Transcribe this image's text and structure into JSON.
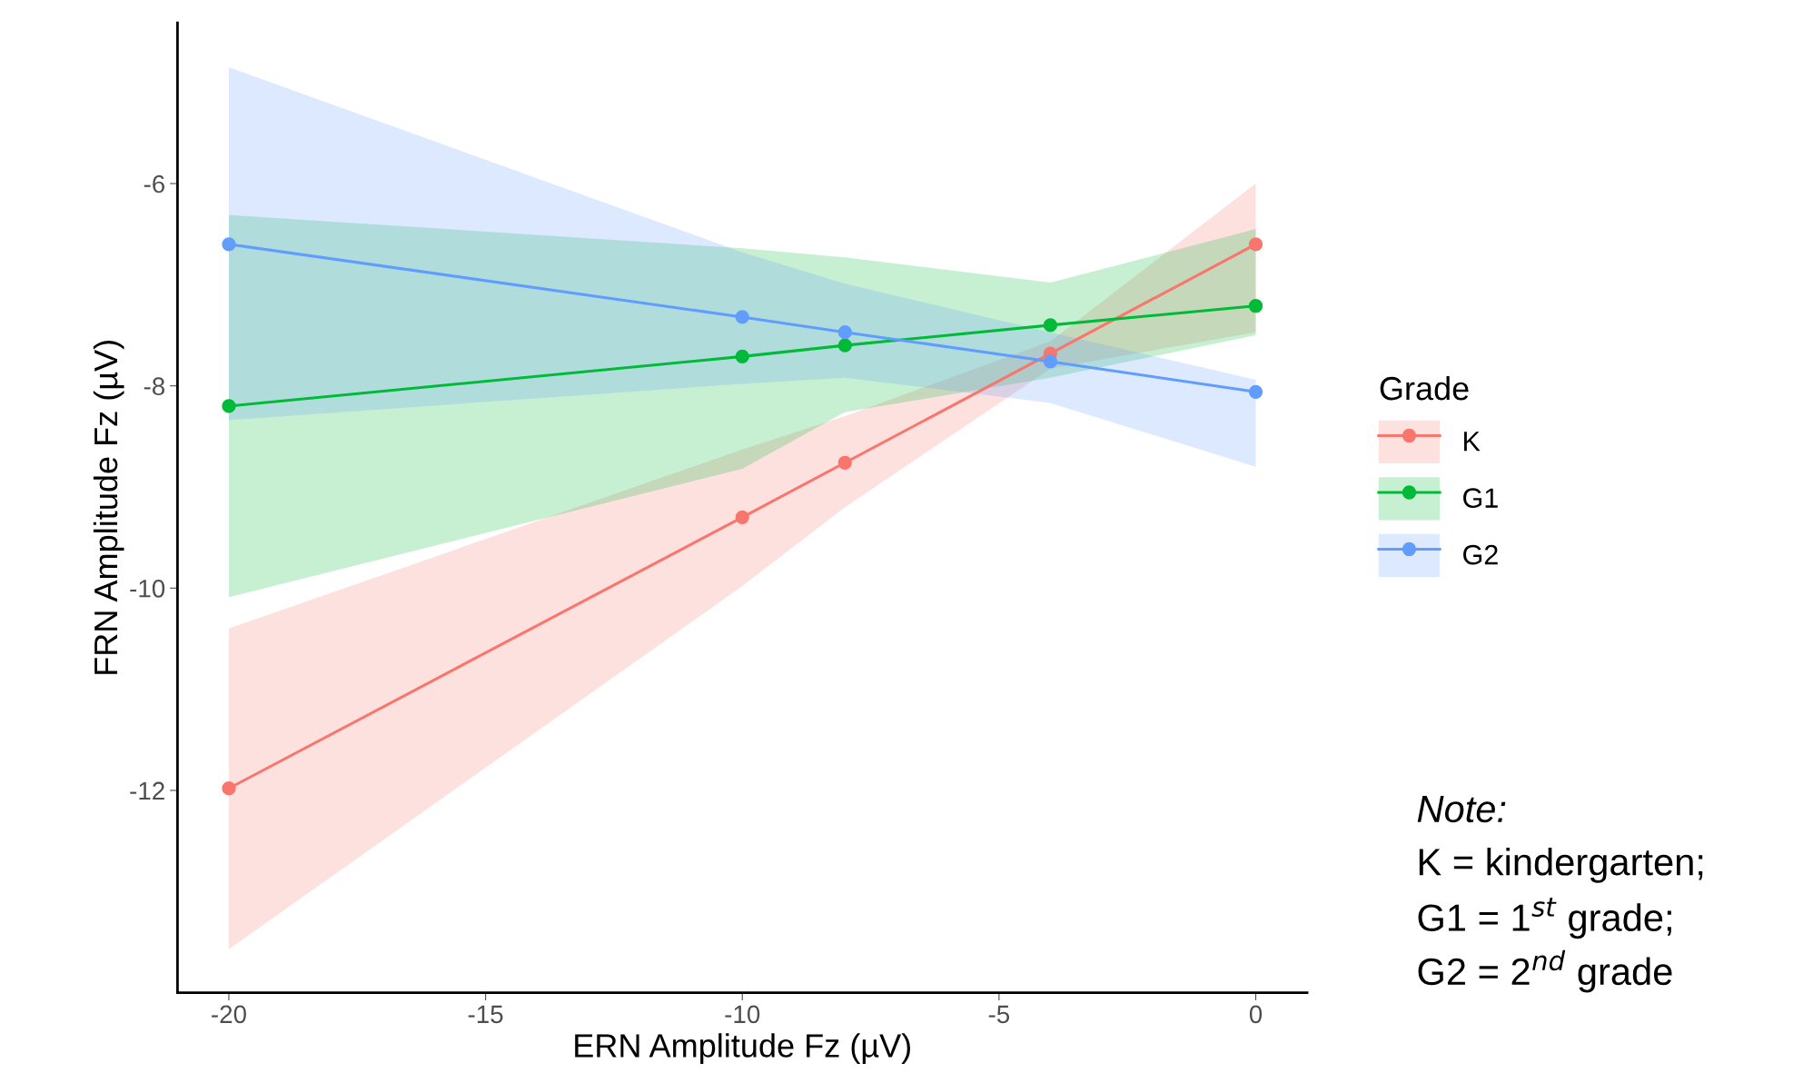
{
  "chart_data": {
    "type": "line",
    "xlabel": "ERN Amplitude Fz (µV)",
    "ylabel": "FRN Amplitude Fz (µV)",
    "legend_title": "Grade",
    "legend": "right",
    "marker": "circle",
    "line_style": "solid",
    "grid": false,
    "x": [
      -20,
      -10,
      -8,
      -4,
      0
    ],
    "xlim": [
      -21,
      1
    ],
    "xticks": [
      -20,
      -15,
      -10,
      -5,
      0
    ],
    "ylim": [
      -14.0,
      -4.41
    ],
    "yticks": [
      -6,
      -8,
      -10,
      -12
    ],
    "series": [
      {
        "name": "K",
        "color": "#f8766d",
        "values": [
          -11.98,
          -9.3,
          -8.76,
          -7.68,
          -6.6
        ],
        "lower": [
          -13.57,
          -9.98,
          -9.2,
          -7.83,
          -7.47
        ],
        "upper": [
          -10.4,
          -8.63,
          -8.3,
          -7.56,
          -6.0
        ]
      },
      {
        "name": "G1",
        "color": "#00ba38",
        "values": [
          -8.2,
          -7.71,
          -7.6,
          -7.4,
          -7.21
        ],
        "lower": [
          -10.09,
          -8.82,
          -8.26,
          -7.92,
          -7.5
        ],
        "upper": [
          -6.31,
          -6.64,
          -6.73,
          -6.98,
          -6.45
        ]
      },
      {
        "name": "G2",
        "color": "#619cff",
        "values": [
          -6.6,
          -7.32,
          -7.47,
          -7.76,
          -8.06
        ],
        "lower": [
          -8.34,
          -7.98,
          -7.92,
          -8.17,
          -8.8
        ],
        "upper": [
          -4.85,
          -6.68,
          -6.99,
          -7.47,
          -7.94
        ]
      }
    ],
    "annotations": [
      "Note:",
      "K = kindergarten;",
      "G1 = 1$^{st}$ grade;",
      "G2 = 2$^{nd}$ grade"
    ]
  }
}
